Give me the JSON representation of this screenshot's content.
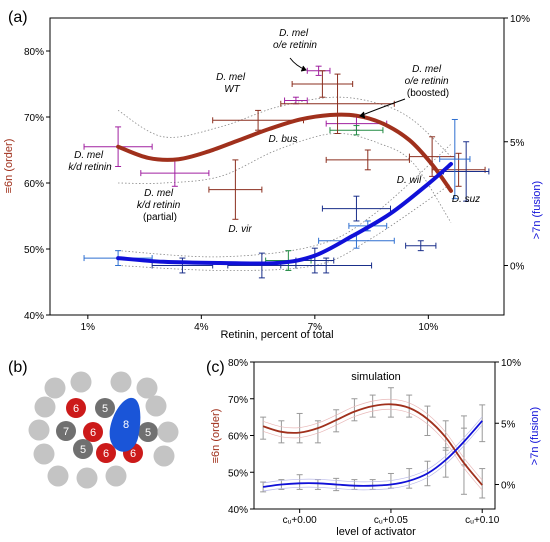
{
  "colors": {
    "order": "#a0301c",
    "fusion": "#1010d8",
    "cell_red": "#cc1a1a",
    "cell_dark": "#707070",
    "cell_light": "#c4c4c4",
    "cell_blue": "#1a55d8",
    "err_magenta": "#a020a0",
    "err_brown": "#8b2f1f",
    "err_navy": "#1a2f8a",
    "err_blue": "#2e6fd0",
    "err_green": "#228b44"
  },
  "chart_data": [
    {
      "panel": "(a)",
      "type": "scatter",
      "xlabel": "Retinin, percent of total",
      "ylabel_left": "≡6n (order)",
      "ylabel_right": ">7n (fusion)",
      "xlim": [
        0,
        12
      ],
      "x_ticks": [
        {
          "v": 1,
          "label": "1%"
        },
        {
          "v": 4,
          "label": "4%"
        },
        {
          "v": 7,
          "label": "7%"
        },
        {
          "v": 10,
          "label": "10%"
        }
      ],
      "ylim_left": [
        40,
        85
      ],
      "yticks_left": [
        {
          "v": 40,
          "label": "40%"
        },
        {
          "v": 50,
          "label": "50%"
        },
        {
          "v": 60,
          "label": "60%"
        },
        {
          "v": 70,
          "label": "70%"
        },
        {
          "v": 80,
          "label": "80%"
        }
      ],
      "ylim_right": [
        -2,
        10
      ],
      "yticks_right": [
        {
          "v": 0,
          "label": "0%"
        },
        {
          "v": 5,
          "label": "5%"
        },
        {
          "v": 10,
          "label": "10%"
        }
      ],
      "order_points": [
        {
          "x": 1.8,
          "y": 65.5,
          "xerr": 0.9,
          "yerr": 3,
          "c": "err_magenta"
        },
        {
          "x": 3.3,
          "y": 61.5,
          "xerr": 0.9,
          "yerr": 2,
          "c": "err_magenta"
        },
        {
          "x": 4.9,
          "y": 59.0,
          "xerr": 0.7,
          "yerr": 4.5,
          "c": "err_brown"
        },
        {
          "x": 5.5,
          "y": 69.5,
          "xerr": 1.2,
          "yerr": 1.5,
          "c": "err_brown"
        },
        {
          "x": 6.5,
          "y": 72.5,
          "xerr": 0.3,
          "yerr": 0.5,
          "c": "err_magenta"
        },
        {
          "x": 7.1,
          "y": 77.0,
          "xerr": 0.3,
          "yerr": 0.7,
          "c": "err_magenta"
        },
        {
          "x": 7.2,
          "y": 75.0,
          "xerr": 0.8,
          "yerr": 2,
          "c": "err_brown"
        },
        {
          "x": 8.1,
          "y": 69.0,
          "xerr": 0.8,
          "yerr": 1,
          "c": "err_magenta"
        },
        {
          "x": 8.1,
          "y": 68.0,
          "xerr": 0.7,
          "yerr": 0.7,
          "c": "err_green"
        },
        {
          "x": 8.4,
          "y": 63.5,
          "xerr": 1.1,
          "yerr": 1.5,
          "c": "err_brown"
        },
        {
          "x": 10.1,
          "y": 64.0,
          "xerr": 0.6,
          "yerr": 3,
          "c": "err_brown"
        },
        {
          "x": 10.8,
          "y": 62.0,
          "xerr": 0.7,
          "yerr": 2.5,
          "c": "err_brown"
        },
        {
          "x": 7.6,
          "y": 72.0,
          "xerr": 1.5,
          "yerr": 4.5,
          "c": "err_brown"
        }
      ],
      "fusion_points": [
        {
          "x": 1.8,
          "y": 0.3,
          "xerr": 0.9,
          "yerr": 0.3,
          "c": "err_blue"
        },
        {
          "x": 3.5,
          "y": 0.0,
          "xerr": 0.8,
          "yerr": 0.3,
          "c": "err_navy"
        },
        {
          "x": 5.6,
          "y": 0.0,
          "xerr": 0.9,
          "yerr": 0.5,
          "c": "err_navy"
        },
        {
          "x": 6.3,
          "y": 0.2,
          "xerr": 0.6,
          "yerr": 0.4,
          "c": "err_green"
        },
        {
          "x": 7.0,
          "y": 0.2,
          "xerr": 0.5,
          "yerr": 0.5,
          "c": "err_navy"
        },
        {
          "x": 7.3,
          "y": 0.0,
          "xerr": 1.2,
          "yerr": 0.3,
          "c": "err_navy"
        },
        {
          "x": 8.1,
          "y": 1.0,
          "xerr": 1.0,
          "yerr": 0.3,
          "c": "err_blue"
        },
        {
          "x": 8.1,
          "y": 2.3,
          "xerr": 0.9,
          "yerr": 0.5,
          "c": "err_navy"
        },
        {
          "x": 8.4,
          "y": 1.6,
          "xerr": 0.5,
          "yerr": 0.2,
          "c": "err_blue"
        },
        {
          "x": 9.8,
          "y": 0.8,
          "xerr": 0.4,
          "yerr": 0.2,
          "c": "err_navy"
        },
        {
          "x": 11.0,
          "y": 3.8,
          "xerr": 0.6,
          "yerr": 1.2,
          "c": "err_navy"
        },
        {
          "x": 10.7,
          "y": 4.3,
          "xerr": 0.4,
          "yerr": 1.6,
          "c": "err_blue"
        }
      ],
      "order_fit": [
        [
          1.8,
          65.5
        ],
        [
          2.6,
          63.8
        ],
        [
          3.4,
          63.6
        ],
        [
          4.2,
          64.8
        ],
        [
          5.0,
          66.5
        ],
        [
          5.8,
          68.2
        ],
        [
          6.6,
          69.6
        ],
        [
          7.4,
          70.3
        ],
        [
          8.1,
          70.2
        ],
        [
          8.8,
          69.0
        ],
        [
          9.5,
          66.5
        ],
        [
          10.1,
          62.8
        ],
        [
          10.6,
          58.8
        ]
      ],
      "order_band_upper": [
        [
          1.8,
          71
        ],
        [
          3.0,
          67
        ],
        [
          4.5,
          68.5
        ],
        [
          6.0,
          71.5
        ],
        [
          7.5,
          73
        ],
        [
          8.7,
          72
        ],
        [
          9.6,
          69.5
        ],
        [
          10.6,
          64
        ]
      ],
      "order_band_lower": [
        [
          1.8,
          60
        ],
        [
          3.0,
          60
        ],
        [
          4.5,
          61
        ],
        [
          6.0,
          65
        ],
        [
          7.5,
          67.5
        ],
        [
          8.7,
          66
        ],
        [
          9.6,
          63
        ],
        [
          10.6,
          54
        ]
      ],
      "fusion_fit": [
        [
          1.8,
          0.3
        ],
        [
          3.0,
          0.15
        ],
        [
          4.5,
          0.1
        ],
        [
          6.0,
          0.1
        ],
        [
          7.0,
          0.4
        ],
        [
          8.0,
          1.2
        ],
        [
          9.0,
          2.1
        ],
        [
          10.0,
          3.3
        ],
        [
          10.6,
          4.1
        ]
      ],
      "fusion_band_upper": [
        [
          1.8,
          0.6
        ],
        [
          4.5,
          0.35
        ],
        [
          7.0,
          0.8
        ],
        [
          8.5,
          2.0
        ],
        [
          10.6,
          4.9
        ]
      ],
      "fusion_band_lower": [
        [
          1.8,
          0.0
        ],
        [
          4.5,
          -0.2
        ],
        [
          7.0,
          0.0
        ],
        [
          8.5,
          1.1
        ],
        [
          10.6,
          3.3
        ]
      ],
      "species_labels": [
        {
          "lines": [
            "D. mel",
            "k/d retinin"
          ],
          "italic": [
            true,
            true
          ]
        },
        {
          "lines": [
            "D. mel",
            "k/d retinin",
            "(partial)"
          ],
          "italic": [
            true,
            true,
            false
          ]
        },
        {
          "lines": [
            "D. mel",
            "WT"
          ],
          "italic": [
            true,
            true
          ]
        },
        {
          "lines": [
            "D. mel",
            "o/e retinin"
          ],
          "italic": [
            true,
            true
          ]
        },
        {
          "lines": [
            "D. mel",
            "o/e retinin",
            "(boosted)"
          ],
          "italic": [
            true,
            true,
            false
          ]
        },
        {
          "lines": [
            "D. bus"
          ],
          "italic": [
            true
          ]
        },
        {
          "lines": [
            "D. vir"
          ],
          "italic": [
            true
          ]
        },
        {
          "lines": [
            "D. wil"
          ],
          "italic": [
            true
          ]
        },
        {
          "lines": [
            "D. suz"
          ],
          "italic": [
            true
          ]
        }
      ]
    },
    {
      "panel": "(c)",
      "type": "line",
      "title": "simulation",
      "xlabel": "level of activator",
      "ylabel_left": "≡6n (order)",
      "ylabel_right": ">7n (fusion)",
      "xlim": [
        -0.025,
        0.107
      ],
      "x_ticks": [
        {
          "v": 0.0,
          "label": "cᵤ+0.00"
        },
        {
          "v": 0.05,
          "label": "cᵤ+0.05"
        },
        {
          "v": 0.1,
          "label": "cᵤ+0.10"
        }
      ],
      "ylim_left": [
        40,
        80
      ],
      "yticks_left": [
        {
          "v": 40,
          "label": "40%"
        },
        {
          "v": 50,
          "label": "50%"
        },
        {
          "v": 60,
          "label": "60%"
        },
        {
          "v": 70,
          "label": "70%"
        },
        {
          "v": 80,
          "label": "80%"
        }
      ],
      "ylim_right": [
        -2,
        10
      ],
      "yticks_right": [
        {
          "v": 0,
          "label": "0%"
        },
        {
          "v": 5,
          "label": "5%"
        },
        {
          "v": 10,
          "label": "10%"
        }
      ],
      "series": [
        {
          "key": "order",
          "x": [
            -0.02,
            -0.01,
            0.0,
            0.01,
            0.02,
            0.03,
            0.04,
            0.05,
            0.06,
            0.07,
            0.08,
            0.09,
            0.1
          ],
          "values": [
            62.5,
            61.0,
            60.8,
            62.0,
            64.2,
            66.5,
            68.0,
            68.5,
            67.5,
            64.5,
            59.5,
            52.5,
            46.5
          ]
        },
        {
          "key": "fusion",
          "x": [
            -0.02,
            -0.01,
            0.0,
            0.01,
            0.02,
            0.03,
            0.04,
            0.05,
            0.06,
            0.07,
            0.08,
            0.09,
            0.1
          ],
          "values": [
            -0.2,
            0.0,
            0.1,
            0.1,
            0.0,
            -0.1,
            -0.1,
            0.0,
            0.3,
            0.9,
            2.0,
            3.5,
            5.2
          ]
        }
      ],
      "order_errors": [
        [
          -0.02,
          62,
          3
        ],
        [
          -0.01,
          61,
          3
        ],
        [
          0.0,
          62,
          4
        ],
        [
          0.01,
          61,
          3
        ],
        [
          0.02,
          64,
          3
        ],
        [
          0.03,
          67,
          3
        ],
        [
          0.04,
          68,
          3
        ],
        [
          0.05,
          69,
          4
        ],
        [
          0.06,
          68,
          3
        ],
        [
          0.07,
          64,
          4
        ],
        [
          0.08,
          60,
          4
        ],
        [
          0.09,
          53,
          9
        ],
        [
          0.1,
          47,
          4
        ]
      ],
      "fusion_errors": [
        [
          -0.02,
          -0.2,
          0.4
        ],
        [
          -0.01,
          0.0,
          0.4
        ],
        [
          0.0,
          0.2,
          0.6
        ],
        [
          0.01,
          0.0,
          0.4
        ],
        [
          0.02,
          0.0,
          0.5
        ],
        [
          0.03,
          0.0,
          0.4
        ],
        [
          0.04,
          0.0,
          0.4
        ],
        [
          0.05,
          0.3,
          0.6
        ],
        [
          0.06,
          0.5,
          0.8
        ],
        [
          0.07,
          0.9,
          1.0
        ],
        [
          0.08,
          1.8,
          1.2
        ],
        [
          0.09,
          3.6,
          2.0
        ],
        [
          0.1,
          5.0,
          1.5
        ]
      ]
    }
  ],
  "diagram": {
    "panel": "(b)",
    "cells": [
      {
        "kind": "light"
      },
      {
        "kind": "light"
      },
      {
        "kind": "light"
      },
      {
        "kind": "light"
      },
      {
        "kind": "light"
      },
      {
        "kind": "red",
        "label": "6"
      },
      {
        "kind": "dark",
        "label": "5"
      },
      {
        "kind": "light"
      },
      {
        "kind": "light"
      },
      {
        "kind": "dark",
        "label": "7"
      },
      {
        "kind": "red",
        "label": "6"
      },
      {
        "kind": "dark",
        "label": "5"
      },
      {
        "kind": "light"
      },
      {
        "kind": "light"
      },
      {
        "kind": "dark",
        "label": "5"
      },
      {
        "kind": "red",
        "label": "6"
      },
      {
        "kind": "red",
        "label": "6"
      },
      {
        "kind": "light"
      },
      {
        "kind": "light"
      },
      {
        "kind": "light"
      },
      {
        "kind": "light"
      },
      {
        "kind": "blue",
        "label": "8"
      }
    ]
  }
}
